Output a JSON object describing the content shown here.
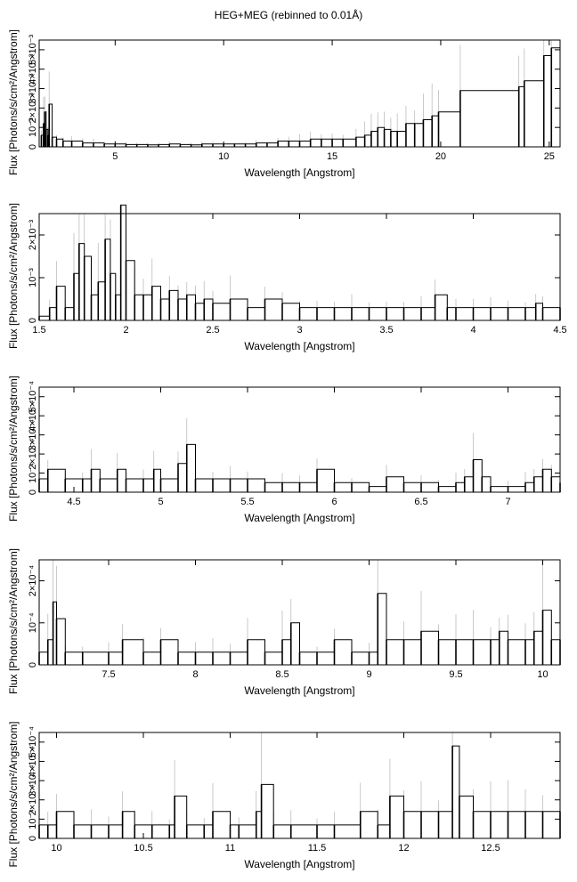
{
  "figure": {
    "title": "HEG+MEG (rebinned to 0.01Å)"
  },
  "chart_data": [
    {
      "type": "line",
      "xlabel": "Wavelength [Angstrom]",
      "ylabel": "Flux [Photons/s/cm²/Angstrom]",
      "xlim": [
        1.5,
        25.5
      ],
      "ylim": [
        0,
        0.0055
      ],
      "xticks": [
        5,
        10,
        15,
        20,
        25
      ],
      "xticklabels": [
        "5",
        "10",
        "15",
        "20",
        "25"
      ],
      "yticks": [
        0,
        0.001,
        0.002,
        0.003,
        0.004,
        0.005
      ],
      "yticklabels": [
        "0",
        "10⁻³",
        "2×10⁻³",
        "3×10⁻³",
        "4×10⁻³",
        "5×10⁻³"
      ],
      "series": [
        {
          "values": [
            [
              1.6,
              0.0006
            ],
            [
              1.7,
              0.0012
            ],
            [
              1.76,
              0.0018
            ],
            [
              1.82,
              0.0009
            ],
            [
              1.9,
              0.0006
            ],
            [
              1.96,
              0.0022
            ],
            [
              2.1,
              0.0005
            ],
            [
              2.3,
              0.0004
            ],
            [
              2.6,
              0.0003
            ],
            [
              3.0,
              0.0003
            ],
            [
              3.5,
              0.0002
            ],
            [
              4.0,
              0.0002
            ],
            [
              4.5,
              0.00015
            ],
            [
              5.0,
              0.00015
            ],
            [
              5.5,
              0.00012
            ],
            [
              6.0,
              0.00012
            ],
            [
              6.5,
              0.0001
            ],
            [
              7.0,
              0.00012
            ],
            [
              7.5,
              0.00015
            ],
            [
              8.0,
              0.00012
            ],
            [
              8.5,
              0.0001
            ],
            [
              9.0,
              0.00015
            ],
            [
              9.5,
              0.00015
            ],
            [
              10.0,
              0.00015
            ],
            [
              10.5,
              0.00015
            ],
            [
              11.0,
              0.00015
            ],
            [
              11.5,
              0.0002
            ],
            [
              12.0,
              0.0002
            ],
            [
              12.5,
              0.0003
            ],
            [
              13.0,
              0.0003
            ],
            [
              13.5,
              0.0003
            ],
            [
              14.0,
              0.0004
            ],
            [
              14.5,
              0.0004
            ],
            [
              15.0,
              0.0004
            ],
            [
              15.5,
              0.0004
            ],
            [
              16.1,
              0.0005
            ],
            [
              16.5,
              0.0006
            ],
            [
              16.8,
              0.0008
            ],
            [
              17.1,
              0.001
            ],
            [
              17.4,
              0.0009
            ],
            [
              17.7,
              0.0008
            ],
            [
              18.0,
              0.0008
            ],
            [
              18.4,
              0.0012
            ],
            [
              18.8,
              0.0012
            ],
            [
              19.2,
              0.0014
            ],
            [
              19.6,
              0.0016
            ],
            [
              19.9,
              0.0018
            ],
            [
              20.9,
              0.0029
            ],
            [
              23.6,
              0.0031
            ],
            [
              23.85,
              0.0034
            ],
            [
              24.75,
              0.0047
            ],
            [
              25.1,
              0.0051
            ]
          ]
        }
      ]
    },
    {
      "type": "line",
      "xlabel": "Wavelength [Angstrom]",
      "ylabel": "Flux [Photons/s/cm²/Angstrom]",
      "xlim": [
        1.5,
        4.5
      ],
      "ylim": [
        0,
        0.0025
      ],
      "xticks": [
        1.5,
        2,
        2.5,
        3,
        3.5,
        4,
        4.5
      ],
      "xticklabels": [
        "1.5",
        "2",
        "2.5",
        "3",
        "3.5",
        "4",
        "4.5"
      ],
      "yticks": [
        0,
        0.001,
        0.002
      ],
      "yticklabels": [
        "0",
        "10⁻³",
        "2×10⁻³"
      ],
      "series": [
        {
          "values": [
            [
              1.5,
              0.0001
            ],
            [
              1.56,
              0.0003
            ],
            [
              1.6,
              0.0008
            ],
            [
              1.65,
              0.0003
            ],
            [
              1.7,
              0.0011
            ],
            [
              1.73,
              0.0018
            ],
            [
              1.76,
              0.0015
            ],
            [
              1.8,
              0.0006
            ],
            [
              1.84,
              0.0009
            ],
            [
              1.88,
              0.0019
            ],
            [
              1.91,
              0.0011
            ],
            [
              1.94,
              0.0006
            ],
            [
              1.97,
              0.0027
            ],
            [
              2.0,
              0.0014
            ],
            [
              2.05,
              0.0006
            ],
            [
              2.1,
              0.0006
            ],
            [
              2.15,
              0.0008
            ],
            [
              2.2,
              0.0005
            ],
            [
              2.25,
              0.0007
            ],
            [
              2.3,
              0.0005
            ],
            [
              2.35,
              0.0006
            ],
            [
              2.4,
              0.0004
            ],
            [
              2.45,
              0.0005
            ],
            [
              2.5,
              0.0004
            ],
            [
              2.6,
              0.0005
            ],
            [
              2.7,
              0.0003
            ],
            [
              2.8,
              0.0005
            ],
            [
              2.9,
              0.0004
            ],
            [
              3.0,
              0.0003
            ],
            [
              3.1,
              0.0003
            ],
            [
              3.2,
              0.0003
            ],
            [
              3.3,
              0.0003
            ],
            [
              3.4,
              0.0003
            ],
            [
              3.5,
              0.0003
            ],
            [
              3.6,
              0.0003
            ],
            [
              3.7,
              0.0003
            ],
            [
              3.78,
              0.0006
            ],
            [
              3.85,
              0.0003
            ],
            [
              3.9,
              0.0003
            ],
            [
              4.0,
              0.0003
            ],
            [
              4.1,
              0.0003
            ],
            [
              4.2,
              0.0003
            ],
            [
              4.3,
              0.0003
            ],
            [
              4.36,
              0.0004
            ],
            [
              4.4,
              0.0003
            ],
            [
              4.5,
              0.0003
            ]
          ]
        }
      ]
    },
    {
      "type": "line",
      "xlabel": "Wavelength [Angstrom]",
      "ylabel": "Flux [Photons/s/cm²/Angstrom]",
      "xlim": [
        4.3,
        7.3
      ],
      "ylim": [
        0,
        0.00055
      ],
      "xticks": [
        4.5,
        5,
        5.5,
        6,
        6.5,
        7
      ],
      "xticklabels": [
        "4.5",
        "5",
        "5.5",
        "6",
        "6.5",
        "7"
      ],
      "yticks": [
        0,
        0.0001,
        0.0002,
        0.0003,
        0.0004,
        0.0005
      ],
      "yticklabels": [
        "0",
        "10⁻⁴",
        "2×10⁻⁴",
        "3×10⁻⁴",
        "4×10⁻⁴",
        "5×10⁻⁴"
      ],
      "series": [
        {
          "values": [
            [
              4.3,
              7e-05
            ],
            [
              4.35,
              0.00012
            ],
            [
              4.45,
              7e-05
            ],
            [
              4.55,
              7e-05
            ],
            [
              4.6,
              0.00012
            ],
            [
              4.65,
              7e-05
            ],
            [
              4.75,
              0.00012
            ],
            [
              4.8,
              7e-05
            ],
            [
              4.9,
              7e-05
            ],
            [
              4.96,
              0.00012
            ],
            [
              5.0,
              7e-05
            ],
            [
              5.1,
              0.00015
            ],
            [
              5.15,
              0.00025
            ],
            [
              5.2,
              7e-05
            ],
            [
              5.3,
              7e-05
            ],
            [
              5.4,
              7e-05
            ],
            [
              5.5,
              7e-05
            ],
            [
              5.6,
              5e-05
            ],
            [
              5.7,
              5e-05
            ],
            [
              5.8,
              5e-05
            ],
            [
              5.9,
              0.00012
            ],
            [
              6.0,
              5e-05
            ],
            [
              6.1,
              5e-05
            ],
            [
              6.2,
              3e-05
            ],
            [
              6.3,
              8e-05
            ],
            [
              6.4,
              5e-05
            ],
            [
              6.5,
              5e-05
            ],
            [
              6.6,
              3e-05
            ],
            [
              6.7,
              5e-05
            ],
            [
              6.75,
              8e-05
            ],
            [
              6.8,
              0.00017
            ],
            [
              6.85,
              8e-05
            ],
            [
              6.9,
              3e-05
            ],
            [
              7.0,
              3e-05
            ],
            [
              7.1,
              5e-05
            ],
            [
              7.15,
              8e-05
            ],
            [
              7.2,
              0.00012
            ],
            [
              7.25,
              8e-05
            ],
            [
              7.3,
              5e-05
            ]
          ]
        }
      ]
    },
    {
      "type": "line",
      "xlabel": "Wavelength [Angstrom]",
      "ylabel": "Flux [Photons/s/cm²/Angstrom]",
      "xlim": [
        7.1,
        10.1
      ],
      "ylim": [
        0,
        0.00025
      ],
      "xticks": [
        7.5,
        8,
        8.5,
        9,
        9.5,
        10
      ],
      "xticklabels": [
        "7.5",
        "8",
        "8.5",
        "9",
        "9.5",
        "10"
      ],
      "yticks": [
        0,
        0.0001,
        0.0002
      ],
      "yticklabels": [
        "0",
        "10⁻⁴",
        "2×10⁻⁴"
      ],
      "series": [
        {
          "values": [
            [
              7.1,
              3e-05
            ],
            [
              7.15,
              6e-05
            ],
            [
              7.18,
              0.00015
            ],
            [
              7.2,
              0.00011
            ],
            [
              7.25,
              3e-05
            ],
            [
              7.35,
              3e-05
            ],
            [
              7.5,
              3e-05
            ],
            [
              7.58,
              6e-05
            ],
            [
              7.7,
              3e-05
            ],
            [
              7.8,
              6e-05
            ],
            [
              7.9,
              3e-05
            ],
            [
              8.0,
              3e-05
            ],
            [
              8.1,
              3e-05
            ],
            [
              8.2,
              3e-05
            ],
            [
              8.3,
              6e-05
            ],
            [
              8.4,
              3e-05
            ],
            [
              8.5,
              6e-05
            ],
            [
              8.55,
              0.0001
            ],
            [
              8.6,
              3e-05
            ],
            [
              8.7,
              3e-05
            ],
            [
              8.8,
              6e-05
            ],
            [
              8.9,
              3e-05
            ],
            [
              9.0,
              3e-05
            ],
            [
              9.05,
              0.00017
            ],
            [
              9.1,
              6e-05
            ],
            [
              9.2,
              6e-05
            ],
            [
              9.3,
              8e-05
            ],
            [
              9.4,
              6e-05
            ],
            [
              9.5,
              6e-05
            ],
            [
              9.6,
              6e-05
            ],
            [
              9.7,
              6e-05
            ],
            [
              9.75,
              8e-05
            ],
            [
              9.8,
              6e-05
            ],
            [
              9.9,
              6e-05
            ],
            [
              9.95,
              8e-05
            ],
            [
              10.0,
              0.00013
            ],
            [
              10.05,
              6e-05
            ],
            [
              10.1,
              6e-05
            ]
          ]
        }
      ]
    },
    {
      "type": "line",
      "xlabel": "Wavelength [Angstrom]",
      "ylabel": "Flux [Photons/s/cm²/Angstrom]",
      "xlim": [
        9.9,
        12.9
      ],
      "ylim": [
        0,
        0.00055
      ],
      "xticks": [
        10,
        10.5,
        11,
        11.5,
        12,
        12.5
      ],
      "xticklabels": [
        "10",
        "10.5",
        "11",
        "11.5",
        "12",
        "12.5"
      ],
      "yticks": [
        0,
        0.0001,
        0.0002,
        0.0003,
        0.0004,
        0.0005
      ],
      "yticklabels": [
        "0",
        "10⁻⁴",
        "2×10⁻⁴",
        "3×10⁻⁴",
        "4×10⁻⁴",
        "5×10⁻⁴"
      ],
      "series": [
        {
          "values": [
            [
              9.9,
              7e-05
            ],
            [
              9.95,
              7e-05
            ],
            [
              10.0,
              0.00014
            ],
            [
              10.1,
              7e-05
            ],
            [
              10.2,
              7e-05
            ],
            [
              10.3,
              7e-05
            ],
            [
              10.38,
              0.00014
            ],
            [
              10.45,
              7e-05
            ],
            [
              10.55,
              7e-05
            ],
            [
              10.65,
              7e-05
            ],
            [
              10.68,
              0.00022
            ],
            [
              10.75,
              7e-05
            ],
            [
              10.85,
              7e-05
            ],
            [
              10.9,
              0.00014
            ],
            [
              11.0,
              7e-05
            ],
            [
              11.05,
              7e-05
            ],
            [
              11.15,
              0.00014
            ],
            [
              11.18,
              0.00028
            ],
            [
              11.25,
              7e-05
            ],
            [
              11.35,
              7e-05
            ],
            [
              11.5,
              7e-05
            ],
            [
              11.6,
              7e-05
            ],
            [
              11.75,
              0.00014
            ],
            [
              11.85,
              7e-05
            ],
            [
              11.92,
              0.00022
            ],
            [
              12.0,
              0.00014
            ],
            [
              12.1,
              0.00014
            ],
            [
              12.2,
              0.00014
            ],
            [
              12.28,
              0.00048
            ],
            [
              12.32,
              0.00022
            ],
            [
              12.4,
              0.00014
            ],
            [
              12.5,
              0.00014
            ],
            [
              12.6,
              0.00014
            ],
            [
              12.7,
              0.00014
            ],
            [
              12.8,
              0.00014
            ],
            [
              12.9,
              0.00014
            ]
          ]
        }
      ]
    }
  ]
}
